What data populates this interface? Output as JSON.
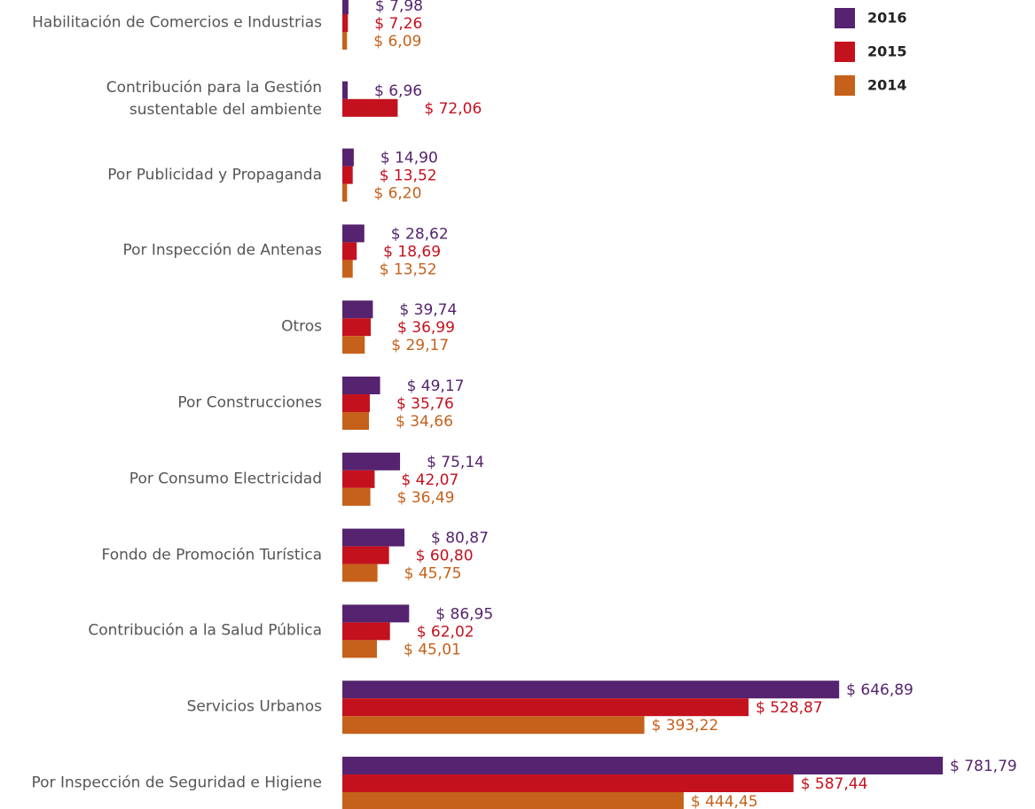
{
  "chart_data": {
    "type": "bar",
    "orientation": "horizontal",
    "categories": [
      "Habilitación de Comercios e Industrias",
      "Contribución para la Gestión\nsustentable del ambiente",
      "Por Publicidad y Propaganda",
      "Por Inspección de Antenas",
      "Otros",
      "Por Construcciones",
      "Por Consumo Electricidad",
      "Fondo de Promoción Turística",
      "Contribución a la Salud Pública",
      "Servicios Urbanos",
      "Por Inspección de Seguridad e Higiene"
    ],
    "series": [
      {
        "name": "2016",
        "color": "#55236f",
        "values": [
          7.98,
          6.96,
          14.9,
          28.62,
          39.74,
          49.17,
          75.14,
          80.87,
          86.95,
          646.89,
          781.79
        ],
        "value_labels": [
          "$ 7,98",
          "$ 6,96",
          "$ 14,90",
          "$ 28,62",
          "$ 39,74",
          "$ 49,17",
          "$ 75,14",
          "$ 80,87",
          "$ 86,95",
          "$ 646,89",
          "$ 781,79"
        ]
      },
      {
        "name": "2015",
        "color": "#c4111e",
        "values": [
          7.26,
          72.06,
          13.52,
          18.69,
          36.99,
          35.76,
          42.07,
          60.8,
          62.02,
          528.87,
          587.44
        ],
        "value_labels": [
          "$ 7,26",
          "$ 72,06",
          "$ 13,52",
          "$ 18,69",
          "$ 36,99",
          "$ 35,76",
          "$ 42,07",
          "$ 60,80",
          "$ 62,02",
          "$ 528,87",
          "$ 587,44"
        ]
      },
      {
        "name": "2014",
        "color": "#c5611a",
        "values": [
          6.09,
          null,
          6.2,
          13.52,
          29.17,
          34.66,
          36.49,
          45.75,
          45.01,
          393.22,
          444.45
        ],
        "value_labels": [
          "$ 6,09",
          null,
          "$ 6,20",
          "$ 13,52",
          "$ 29,17",
          "$ 34,66",
          "$ 36,49",
          "$ 45,75",
          "$ 45,01",
          "$ 393,22",
          "$ 444,45"
        ]
      }
    ],
    "legend": "top-right"
  }
}
